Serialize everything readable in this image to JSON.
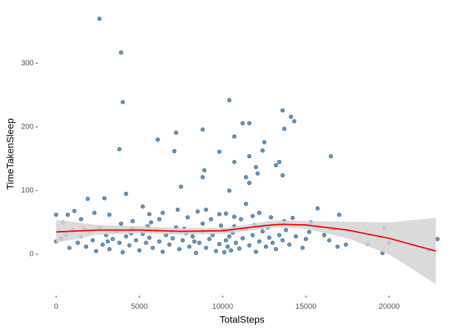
{
  "chart_data": {
    "type": "scatter",
    "x_label": "TotalSteps",
    "y_label": "TimeTakenSleep",
    "x": [
      2600,
      3900,
      4000,
      10400,
      13600,
      14100,
      14300,
      13700,
      8800,
      7200,
      6100,
      11200,
      11600,
      10700,
      12500,
      11600,
      12400,
      3800,
      9800,
      7100,
      8900,
      8800,
      10700,
      13200,
      12000,
      13400,
      11400,
      11600,
      13600,
      16500,
      7500,
      4200,
      10400,
      12100,
      1900,
      2900,
      0,
      400,
      700,
      1100,
      1500,
      2300,
      3200,
      3900,
      4600,
      5200,
      5600,
      6400,
      7300,
      7900,
      8500,
      9000,
      9300,
      9800,
      10200,
      10700,
      11400,
      11800,
      12200,
      12900,
      13700,
      14200,
      15700,
      17000,
      15300,
      6200,
      5700,
      11100,
      8800,
      19700,
      19600,
      20000,
      22400,
      22900,
      18700,
      17400,
      16900,
      16400,
      16100,
      0,
      300,
      600,
      800,
      1000,
      1300,
      1500,
      1800,
      2000,
      2200,
      2400,
      2600,
      2800,
      3000,
      3200,
      3400,
      3600,
      3800,
      4000,
      4200,
      4400,
      4600,
      4800,
      5000,
      5200,
      5400,
      5600,
      5800,
      6000,
      6200,
      6400,
      6600,
      6800,
      7000,
      7200,
      7400,
      7600,
      7800,
      8000,
      8200,
      8400,
      8600,
      8800,
      9000,
      9200,
      9400,
      9600,
      9800,
      10000,
      10100,
      10200,
      10300,
      10400,
      10500,
      10600,
      10800,
      11000,
      11200,
      11400,
      11600,
      11800,
      12000,
      12200,
      12400,
      12600,
      12800,
      13000,
      13200,
      13400,
      13600,
      13800,
      14000,
      14400,
      14800,
      15000,
      15200,
      9900,
      10700,
      7700,
      5500,
      3100,
      1700,
      4500,
      6900,
      8300,
      11900,
      12700
    ],
    "values": [
      370,
      317,
      239,
      242,
      226,
      216,
      209,
      197,
      196,
      191,
      180,
      206,
      206,
      185,
      176,
      154,
      163,
      165,
      161,
      162,
      132,
      121,
      145,
      140,
      137,
      145,
      121,
      112,
      124,
      154,
      106,
      95,
      100,
      127,
      87,
      88,
      62,
      50,
      62,
      68,
      55,
      65,
      62,
      48,
      52,
      75,
      63,
      65,
      70,
      58,
      67,
      70,
      55,
      63,
      64,
      59,
      79,
      60,
      65,
      58,
      52,
      57,
      72,
      62,
      50,
      55,
      50,
      55,
      48,
      42,
      2,
      18,
      6,
      24,
      16,
      15,
      12,
      22,
      30,
      20,
      25,
      30,
      10,
      38,
      18,
      28,
      12,
      35,
      22,
      5,
      42,
      15,
      30,
      8,
      24,
      36,
      18,
      3,
      28,
      14,
      40,
      22,
      6,
      32,
      18,
      26,
      10,
      38,
      20,
      4,
      30,
      15,
      25,
      42,
      8,
      22,
      33,
      12,
      28,
      2,
      18,
      36,
      10,
      24,
      30,
      5,
      16,
      38,
      3,
      22,
      12,
      28,
      6,
      34,
      18,
      9,
      25,
      40,
      14,
      30,
      4,
      20,
      36,
      12,
      26,
      18,
      8,
      30,
      22,
      38,
      15,
      28,
      10,
      24,
      35,
      45,
      44,
      40,
      44,
      20,
      40,
      33,
      35,
      20,
      46,
      42
    ],
    "color": "#4682b4",
    "xlim": [
      -1100,
      23300
    ],
    "ylim": [
      -65,
      380
    ],
    "xticks": [
      0,
      5000,
      10000,
      15000,
      20000
    ],
    "yticks": [
      0,
      100,
      200,
      300
    ],
    "grid": false,
    "smooth": {
      "x": [
        0,
        2500,
        5000,
        7500,
        10000,
        12500,
        13500,
        15000,
        17500,
        20000,
        22800
      ],
      "values": [
        35,
        38,
        38,
        36,
        37,
        45,
        47,
        46,
        38,
        25,
        5
      ],
      "upper": [
        54,
        46,
        44,
        41,
        41,
        51,
        53,
        52,
        51,
        50,
        57
      ],
      "lower": [
        18,
        31,
        33,
        31,
        32,
        40,
        42,
        40,
        25,
        0,
        -47
      ],
      "color": "#ff0000",
      "band_color": "#d3d3d3"
    }
  }
}
